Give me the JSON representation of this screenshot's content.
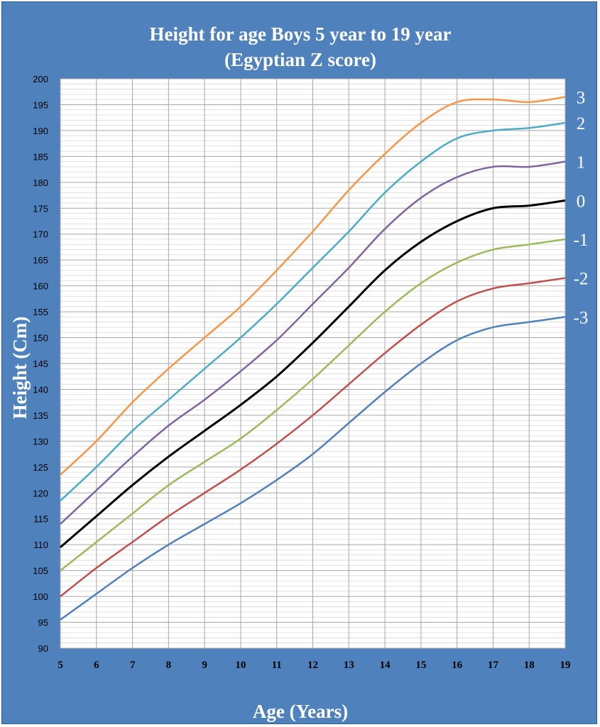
{
  "chart_data": {
    "type": "line",
    "title_line1": "Height for age Boys 5 year to 19 year",
    "title_line2": "(Egyptian Z score)",
    "xlabel": "Age (Years)",
    "ylabel": "Height (Cm)",
    "xlim": [
      5,
      19
    ],
    "ylim": [
      90,
      200
    ],
    "x_ticks": [
      "5",
      "6",
      "7",
      "8",
      "9",
      "10",
      "11",
      "12",
      "13",
      "14",
      "15",
      "16",
      "17",
      "18",
      "19"
    ],
    "y_ticks": [
      "90",
      "95",
      "100",
      "105",
      "110",
      "115",
      "120",
      "125",
      "130",
      "135",
      "140",
      "145",
      "150",
      "155",
      "160",
      "165",
      "170",
      "175",
      "180",
      "185",
      "190",
      "195",
      "200"
    ],
    "grid": true,
    "colors": {
      "frame": "#4f81bd",
      "plot_bg": "#ffffff",
      "grid_major": "#a6a6a6",
      "grid_minor": "#d9d9d9"
    },
    "x": [
      5,
      6,
      7,
      8,
      9,
      10,
      11,
      12,
      13,
      14,
      15,
      16,
      17,
      18,
      19
    ],
    "series": [
      {
        "name": "3",
        "color": "#f79646",
        "values": [
          123.5,
          130,
          137.5,
          144,
          150,
          156,
          163,
          170.5,
          178.5,
          185.5,
          191.5,
          195.5,
          196,
          195.5,
          196.5
        ]
      },
      {
        "name": "2",
        "color": "#4bacc6",
        "values": [
          118.5,
          125,
          132,
          138,
          144,
          150,
          156.5,
          163.5,
          170.5,
          178,
          184,
          188.5,
          190,
          190.5,
          191.5
        ]
      },
      {
        "name": "1",
        "color": "#8064a2",
        "values": [
          114,
          120.5,
          127,
          133,
          138,
          143.5,
          149.5,
          156.5,
          163.5,
          171,
          177,
          181,
          183,
          183,
          184
        ]
      },
      {
        "name": "0",
        "color": "#000000",
        "values": [
          109.5,
          115.5,
          121.5,
          127,
          132,
          137,
          142.5,
          149,
          156,
          163,
          168.5,
          172.5,
          175,
          175.5,
          176.5
        ]
      },
      {
        "name": "-1",
        "color": "#9bbb59",
        "values": [
          105,
          110.5,
          116,
          121.5,
          126,
          130.5,
          136,
          142,
          148.5,
          155,
          160.5,
          164.5,
          167,
          168,
          169
        ]
      },
      {
        "name": "-2",
        "color": "#c0504d",
        "values": [
          100,
          105.5,
          110.5,
          115.5,
          120,
          124.5,
          129.5,
          135,
          141,
          147,
          152.5,
          157,
          159.5,
          160.5,
          161.5
        ]
      },
      {
        "name": "-3",
        "color": "#4f81bd",
        "values": [
          95.5,
          100.5,
          105.5,
          110,
          114,
          118,
          122.5,
          127.5,
          133.5,
          139.5,
          145,
          149.5,
          152,
          153,
          154
        ]
      }
    ]
  }
}
